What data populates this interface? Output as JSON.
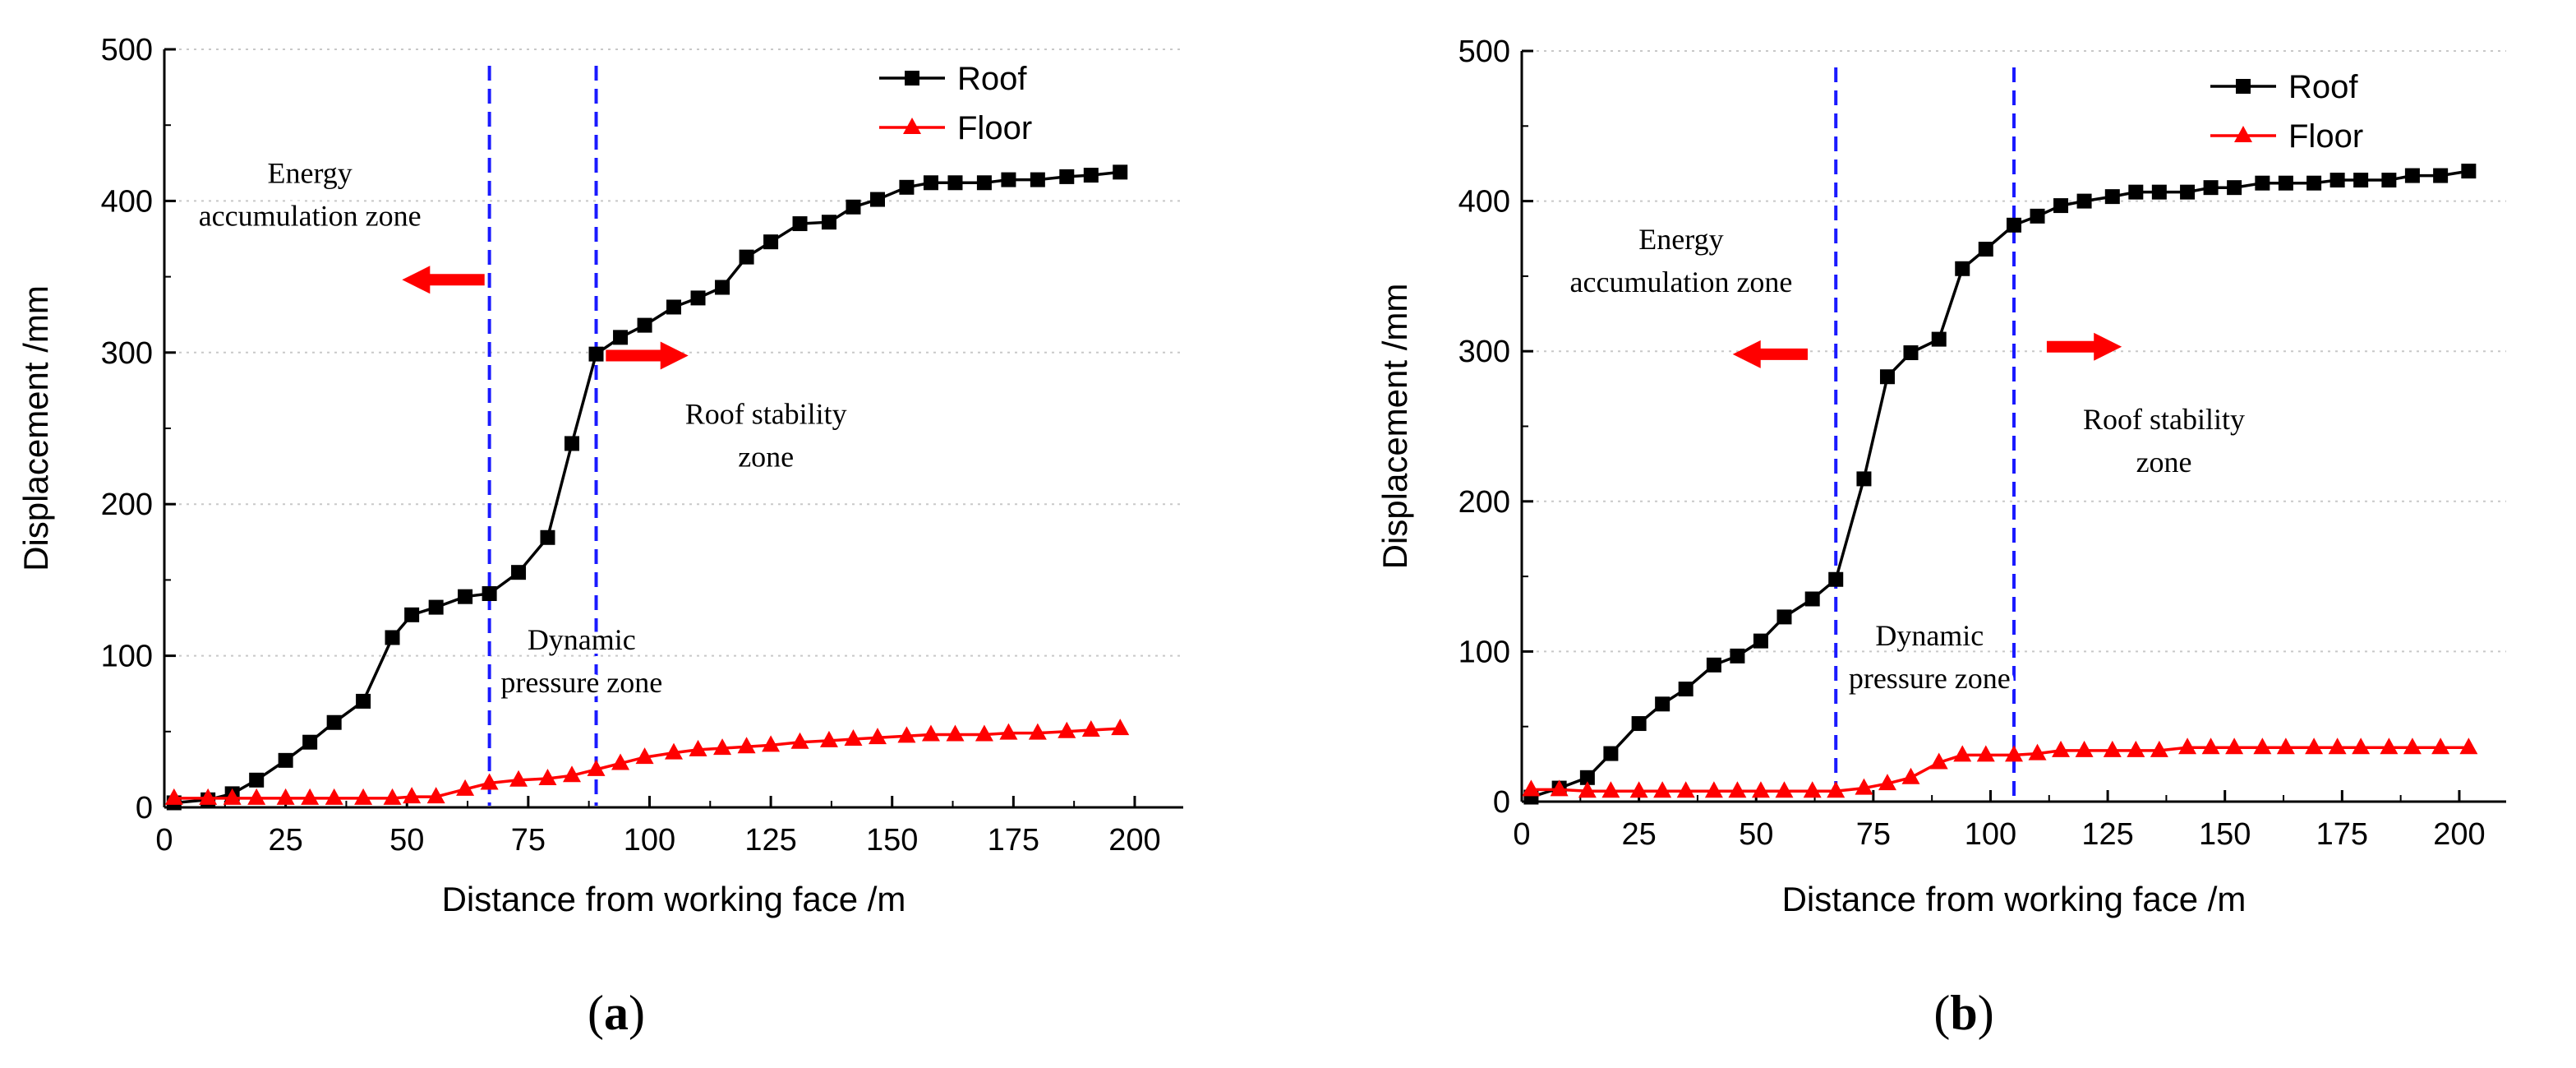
{
  "chart_data": [
    {
      "type": "line",
      "panel_label": "a",
      "xlabel": "Distance from working face /m",
      "ylabel": "Displacement /mm",
      "xlim": [
        0,
        210
      ],
      "ylim": [
        0,
        500
      ],
      "xticks": [
        0,
        25,
        50,
        75,
        100,
        125,
        150,
        175,
        200
      ],
      "yticks": [
        0,
        100,
        200,
        300,
        400,
        500
      ],
      "grid": "horizontal dotted",
      "legend_position": "top-right",
      "series": [
        {
          "name": "Roof",
          "color": "#000000",
          "marker": "square",
          "x": [
            2,
            9,
            14,
            19,
            25,
            30,
            35,
            41,
            47,
            51,
            56,
            62,
            67,
            73,
            79,
            84,
            89,
            94,
            99,
            105,
            110,
            115,
            120,
            125,
            131,
            137,
            142,
            147,
            153,
            158,
            163,
            169,
            174,
            180,
            186,
            191,
            197
          ],
          "y": [
            3,
            5,
            9,
            18,
            31,
            43,
            56,
            70,
            112,
            127,
            132,
            139,
            141,
            155,
            178,
            240,
            299,
            310,
            318,
            330,
            336,
            343,
            363,
            373,
            385,
            386,
            396,
            401,
            409,
            412,
            412,
            412,
            414,
            414,
            416,
            417,
            419
          ]
        },
        {
          "name": "Floor",
          "color": "#ff0000",
          "marker": "triangle",
          "x": [
            2,
            9,
            14,
            19,
            25,
            30,
            35,
            41,
            47,
            51,
            56,
            62,
            67,
            73,
            79,
            84,
            89,
            94,
            99,
            105,
            110,
            115,
            120,
            125,
            131,
            137,
            142,
            147,
            153,
            158,
            163,
            169,
            174,
            180,
            186,
            191,
            197
          ],
          "y": [
            6,
            6,
            6,
            6,
            6,
            6,
            6,
            6,
            6,
            7,
            7,
            12,
            16,
            18,
            19,
            21,
            25,
            29,
            33,
            36,
            38,
            39,
            40,
            41,
            43,
            44,
            45,
            46,
            47,
            48,
            48,
            48,
            49,
            49,
            50,
            51,
            52
          ]
        }
      ],
      "vlines": [
        67,
        89
      ],
      "annotations": [
        {
          "lines": [
            "Energy",
            "accumulation zone"
          ],
          "x": 30,
          "y": 412
        },
        {
          "lines": [
            "Roof stability",
            "zone"
          ],
          "x": 124,
          "y": 253
        },
        {
          "lines": [
            "Dynamic",
            "pressure zone"
          ],
          "x": 86,
          "y": 104
        }
      ],
      "arrows": [
        {
          "direction": "left",
          "x_from": 66,
          "x_to": 49,
          "y": 348
        },
        {
          "direction": "right",
          "x_from": 91,
          "x_to": 108,
          "y": 298
        }
      ]
    },
    {
      "type": "line",
      "panel_label": "b",
      "xlabel": "Distance from working face /m",
      "ylabel": "Displacement /mm",
      "xlim": [
        0,
        210
      ],
      "ylim": [
        0,
        500
      ],
      "xticks": [
        0,
        25,
        50,
        75,
        100,
        125,
        150,
        175,
        200
      ],
      "yticks": [
        0,
        100,
        200,
        300,
        400,
        500
      ],
      "grid": "horizontal dotted",
      "legend_position": "top-right",
      "series": [
        {
          "name": "Roof",
          "color": "#000000",
          "marker": "square",
          "x": [
            2,
            8,
            14,
            19,
            25,
            30,
            35,
            41,
            46,
            51,
            56,
            62,
            67,
            73,
            78,
            83,
            89,
            94,
            99,
            105,
            110,
            115,
            120,
            126,
            131,
            136,
            142,
            147,
            152,
            158,
            163,
            169,
            174,
            179,
            185,
            190,
            196,
            202
          ],
          "y": [
            3,
            9,
            16,
            32,
            52,
            65,
            75,
            91,
            97,
            107,
            123,
            135,
            148,
            215,
            283,
            299,
            308,
            355,
            368,
            384,
            390,
            397,
            400,
            403,
            406,
            406,
            406,
            409,
            409,
            412,
            412,
            412,
            414,
            414,
            414,
            417,
            417,
            420
          ]
        },
        {
          "name": "Floor",
          "color": "#ff0000",
          "marker": "triangle",
          "x": [
            2,
            8,
            14,
            19,
            25,
            30,
            35,
            41,
            46,
            51,
            56,
            62,
            67,
            73,
            78,
            83,
            89,
            94,
            99,
            105,
            110,
            115,
            120,
            126,
            131,
            136,
            142,
            147,
            152,
            158,
            163,
            169,
            174,
            179,
            185,
            190,
            196,
            202
          ],
          "y": [
            8,
            8,
            7,
            7,
            7,
            7,
            7,
            7,
            7,
            7,
            7,
            7,
            7,
            9,
            12,
            16,
            26,
            31,
            31,
            31,
            32,
            34,
            34,
            34,
            34,
            34,
            36,
            36,
            36,
            36,
            36,
            36,
            36,
            36,
            36,
            36,
            36,
            36
          ]
        }
      ],
      "vlines": [
        67,
        105
      ],
      "annotations": [
        {
          "lines": [
            "Energy",
            "accumulation zone"
          ],
          "x": 34,
          "y": 368
        },
        {
          "lines": [
            "Roof stability",
            "zone"
          ],
          "x": 137,
          "y": 248
        },
        {
          "lines": [
            "Dynamic",
            "pressure zone"
          ],
          "x": 87,
          "y": 104
        }
      ],
      "arrows": [
        {
          "direction": "left",
          "x_from": 61,
          "x_to": 45,
          "y": 298
        },
        {
          "direction": "right",
          "x_from": 112,
          "x_to": 128,
          "y": 303
        }
      ]
    }
  ]
}
